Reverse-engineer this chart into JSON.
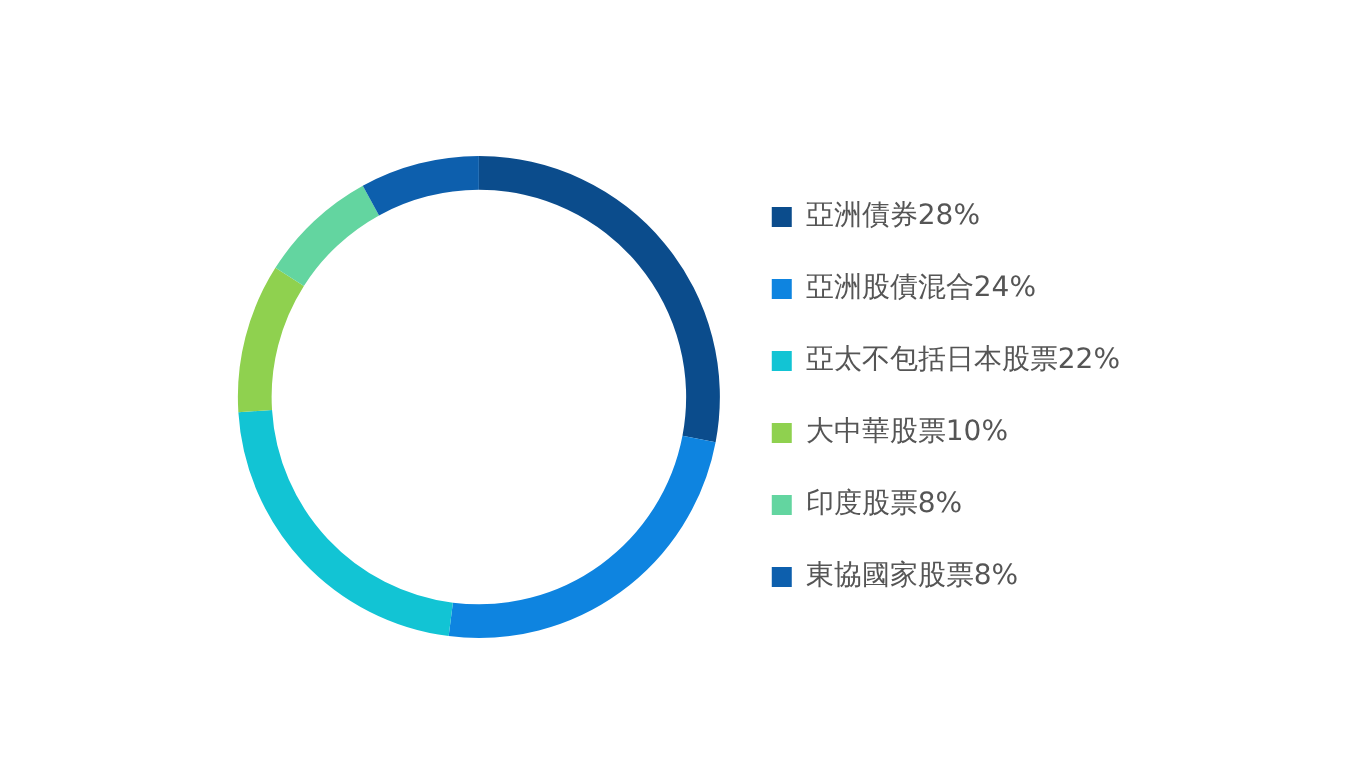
{
  "chart_data": {
    "type": "donut",
    "categories": [
      "亞洲債券28%",
      "亞洲股債混合24%",
      "亞太不包括日本股票22%",
      "大中華股票10%",
      "印度股票8%",
      "東協國家股票8%"
    ],
    "values": [
      28,
      24,
      22,
      10,
      8,
      8
    ],
    "colors": [
      "#0b4c8c",
      "#0e84e0",
      "#12c4d4",
      "#8fd14f",
      "#63d5a0",
      "#0d5fad"
    ],
    "legend": "right"
  }
}
